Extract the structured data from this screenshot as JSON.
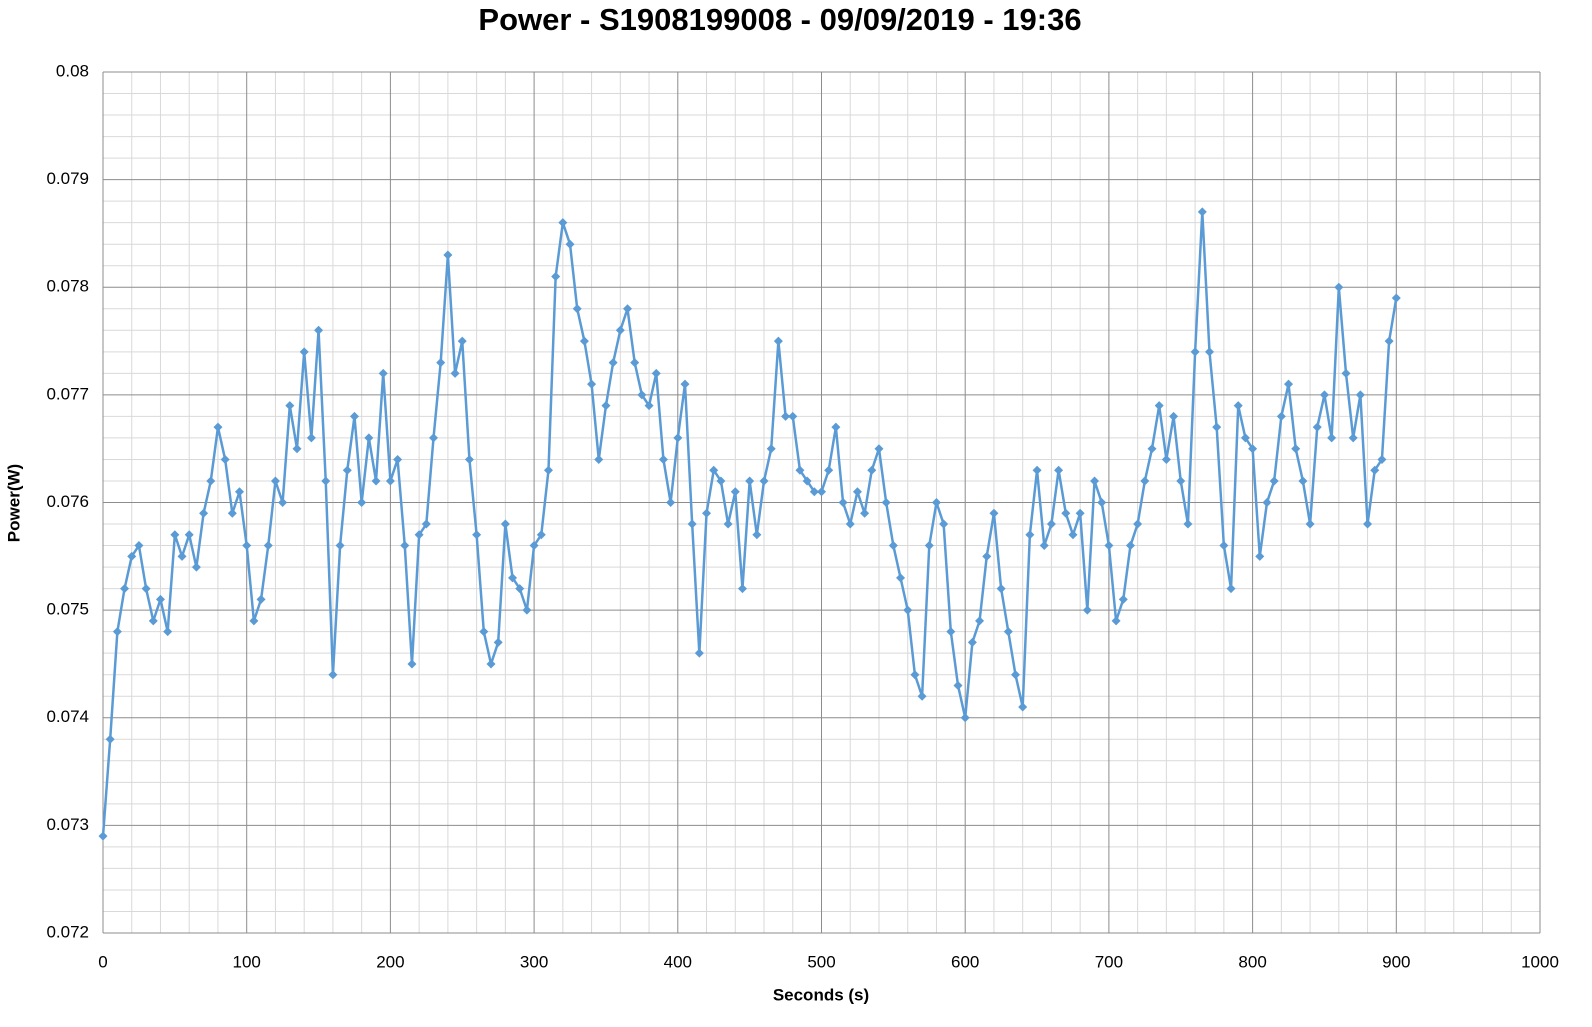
{
  "chart_data": {
    "type": "line",
    "title": "Power - S1908199008 - 09/09/2019 - 19:36",
    "x_label": "Seconds (s)",
    "y_label": "Power(W)",
    "x": [
      0,
      5,
      10,
      15,
      20,
      25,
      30,
      35,
      40,
      45,
      50,
      55,
      60,
      65,
      70,
      75,
      80,
      85,
      90,
      95,
      100,
      105,
      110,
      115,
      120,
      125,
      130,
      135,
      140,
      145,
      150,
      155,
      160,
      165,
      170,
      175,
      180,
      185,
      190,
      195,
      200,
      205,
      210,
      215,
      220,
      225,
      230,
      235,
      240,
      245,
      250,
      255,
      260,
      265,
      270,
      275,
      280,
      285,
      290,
      295,
      300,
      305,
      310,
      315,
      320,
      325,
      330,
      335,
      340,
      345,
      350,
      355,
      360,
      365,
      370,
      375,
      380,
      385,
      390,
      395,
      400,
      405,
      410,
      415,
      420,
      425,
      430,
      435,
      440,
      445,
      450,
      455,
      460,
      465,
      470,
      475,
      480,
      485,
      490,
      495,
      500,
      505,
      510,
      515,
      520,
      525,
      530,
      535,
      540,
      545,
      550,
      555,
      560,
      565,
      570,
      575,
      580,
      585,
      590,
      595,
      600,
      605,
      610,
      615,
      620,
      625,
      630,
      635,
      640,
      645,
      650,
      655,
      660,
      665,
      670,
      675,
      680,
      685,
      690,
      695,
      700,
      705,
      710,
      715,
      720,
      725,
      730,
      735,
      740,
      745,
      750,
      755,
      760,
      765,
      770,
      775,
      780,
      785,
      790,
      795,
      800,
      805,
      810,
      815,
      820,
      825,
      830,
      835,
      840,
      845,
      850,
      855,
      860,
      865,
      870,
      875,
      880,
      885,
      890,
      895,
      900
    ],
    "series": [
      {
        "name": "Power(W)",
        "color": "#5b9bd5",
        "values": [
          0.0729,
          0.0738,
          0.0748,
          0.0752,
          0.0755,
          0.0756,
          0.0752,
          0.0749,
          0.0751,
          0.0748,
          0.0757,
          0.0755,
          0.0757,
          0.0754,
          0.0759,
          0.0762,
          0.0767,
          0.0764,
          0.0759,
          0.0761,
          0.0756,
          0.0749,
          0.0751,
          0.0756,
          0.0762,
          0.076,
          0.0769,
          0.0765,
          0.0774,
          0.0766,
          0.0776,
          0.0762,
          0.0744,
          0.0756,
          0.0763,
          0.0768,
          0.076,
          0.0766,
          0.0762,
          0.0772,
          0.0762,
          0.0764,
          0.0756,
          0.0745,
          0.0757,
          0.0758,
          0.0766,
          0.0773,
          0.0783,
          0.0772,
          0.0775,
          0.0764,
          0.0757,
          0.0748,
          0.0745,
          0.0747,
          0.0758,
          0.0753,
          0.0752,
          0.075,
          0.0756,
          0.0757,
          0.0763,
          0.0781,
          0.0786,
          0.0784,
          0.0778,
          0.0775,
          0.0771,
          0.0764,
          0.0769,
          0.0773,
          0.0776,
          0.0778,
          0.0773,
          0.077,
          0.0769,
          0.0772,
          0.0764,
          0.076,
          0.0766,
          0.0771,
          0.0758,
          0.0746,
          0.0759,
          0.0763,
          0.0762,
          0.0758,
          0.0761,
          0.0752,
          0.0762,
          0.0757,
          0.0762,
          0.0765,
          0.0775,
          0.0768,
          0.0768,
          0.0763,
          0.0762,
          0.0761,
          0.0761,
          0.0763,
          0.0767,
          0.076,
          0.0758,
          0.0761,
          0.0759,
          0.0763,
          0.0765,
          0.076,
          0.0756,
          0.0753,
          0.075,
          0.0744,
          0.0742,
          0.0756,
          0.076,
          0.0758,
          0.0748,
          0.0743,
          0.074,
          0.0747,
          0.0749,
          0.0755,
          0.0759,
          0.0752,
          0.0748,
          0.0744,
          0.0741,
          0.0757,
          0.0763,
          0.0756,
          0.0758,
          0.0763,
          0.0759,
          0.0757,
          0.0759,
          0.075,
          0.0762,
          0.076,
          0.0756,
          0.0749,
          0.0751,
          0.0756,
          0.0758,
          0.0762,
          0.0765,
          0.0769,
          0.0764,
          0.0768,
          0.0762,
          0.0758,
          0.0774,
          0.0787,
          0.0774,
          0.0767,
          0.0756,
          0.0752,
          0.0769,
          0.0766,
          0.0765,
          0.0755,
          0.076,
          0.0762,
          0.0768,
          0.0771,
          0.0765,
          0.0762,
          0.0758,
          0.0767,
          0.077,
          0.0766,
          0.078,
          0.0772,
          0.0766,
          0.077,
          0.0758,
          0.0763,
          0.0764,
          0.0775,
          0.0779
        ]
      }
    ],
    "xlim": [
      0,
      1000
    ],
    "xticks": [
      0,
      100,
      200,
      300,
      400,
      500,
      600,
      700,
      800,
      900,
      1000
    ],
    "ylim": [
      0.072,
      0.08
    ],
    "yticks": [
      0.072,
      0.073,
      0.074,
      0.075,
      0.076,
      0.077,
      0.078,
      0.079,
      0.08
    ],
    "grid": true
  }
}
